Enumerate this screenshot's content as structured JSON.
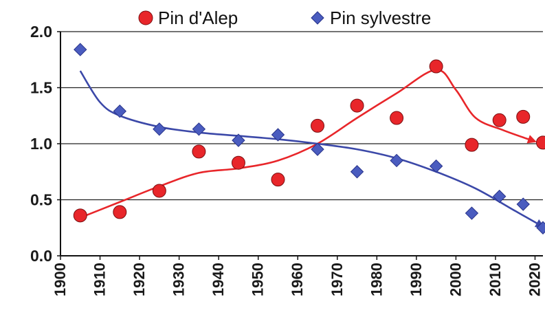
{
  "chart_data": {
    "type": "scatter",
    "title": "",
    "xlabel": "",
    "ylabel": "",
    "xlim": [
      1900,
      2022
    ],
    "ylim": [
      0,
      2.0
    ],
    "x_ticks": [
      "1900",
      "1910",
      "1920",
      "1930",
      "1940",
      "1950",
      "1960",
      "1970",
      "1980",
      "1990",
      "2000",
      "2010",
      "2020"
    ],
    "y_ticks": [
      "0.0",
      "0.5",
      "1.0",
      "1.5",
      "2.0"
    ],
    "grid": "horizontal",
    "legend_position": "top",
    "series": [
      {
        "name": "Pin d'Alep",
        "marker": "circle",
        "color": "#e8262a",
        "points": [
          {
            "x": 1905,
            "y": 0.36
          },
          {
            "x": 1915,
            "y": 0.39
          },
          {
            "x": 1925,
            "y": 0.58
          },
          {
            "x": 1935,
            "y": 0.93
          },
          {
            "x": 1945,
            "y": 0.83
          },
          {
            "x": 1955,
            "y": 0.68
          },
          {
            "x": 1965,
            "y": 1.16
          },
          {
            "x": 1975,
            "y": 1.34
          },
          {
            "x": 1985,
            "y": 1.23
          },
          {
            "x": 1995,
            "y": 1.69
          },
          {
            "x": 2004,
            "y": 0.99
          },
          {
            "x": 2011,
            "y": 1.21
          },
          {
            "x": 2017,
            "y": 1.24
          },
          {
            "x": 2022,
            "y": 1.01
          }
        ],
        "trend": [
          {
            "x": 1905,
            "y": 0.34
          },
          {
            "x": 1915,
            "y": 0.48
          },
          {
            "x": 1925,
            "y": 0.62
          },
          {
            "x": 1935,
            "y": 0.74
          },
          {
            "x": 1945,
            "y": 0.78
          },
          {
            "x": 1955,
            "y": 0.85
          },
          {
            "x": 1965,
            "y": 1.0
          },
          {
            "x": 1975,
            "y": 1.23
          },
          {
            "x": 1985,
            "y": 1.45
          },
          {
            "x": 1995,
            "y": 1.66
          },
          {
            "x": 2000,
            "y": 1.48
          },
          {
            "x": 2005,
            "y": 1.23
          },
          {
            "x": 2012,
            "y": 1.12
          },
          {
            "x": 2020,
            "y": 1.02
          }
        ]
      },
      {
        "name": "Pin sylvestre",
        "marker": "diamond",
        "color": "#3b48a8",
        "points": [
          {
            "x": 1905,
            "y": 1.84
          },
          {
            "x": 1915,
            "y": 1.29
          },
          {
            "x": 1925,
            "y": 1.13
          },
          {
            "x": 1935,
            "y": 1.13
          },
          {
            "x": 1945,
            "y": 1.03
          },
          {
            "x": 1955,
            "y": 1.08
          },
          {
            "x": 1965,
            "y": 0.95
          },
          {
            "x": 1975,
            "y": 0.75
          },
          {
            "x": 1985,
            "y": 0.85
          },
          {
            "x": 1995,
            "y": 0.8
          },
          {
            "x": 2004,
            "y": 0.38
          },
          {
            "x": 2011,
            "y": 0.53
          },
          {
            "x": 2017,
            "y": 0.46
          },
          {
            "x": 2022,
            "y": 0.25
          }
        ],
        "trend": [
          {
            "x": 1905,
            "y": 1.65
          },
          {
            "x": 1910,
            "y": 1.37
          },
          {
            "x": 1915,
            "y": 1.25
          },
          {
            "x": 1925,
            "y": 1.15
          },
          {
            "x": 1935,
            "y": 1.1
          },
          {
            "x": 1945,
            "y": 1.07
          },
          {
            "x": 1955,
            "y": 1.04
          },
          {
            "x": 1965,
            "y": 1.0
          },
          {
            "x": 1975,
            "y": 0.95
          },
          {
            "x": 1985,
            "y": 0.87
          },
          {
            "x": 1995,
            "y": 0.75
          },
          {
            "x": 2005,
            "y": 0.6
          },
          {
            "x": 2015,
            "y": 0.4
          },
          {
            "x": 2022,
            "y": 0.26
          }
        ]
      }
    ]
  }
}
